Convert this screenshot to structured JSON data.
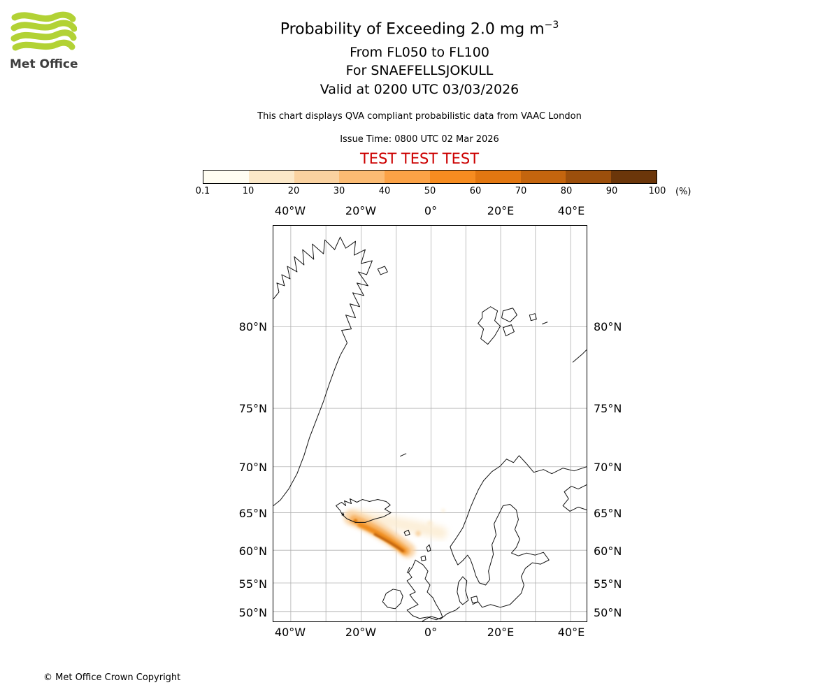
{
  "logo": {
    "text": "Met Office"
  },
  "header": {
    "title_main": "Probability of Exceeding 2.0 mg m",
    "title_exp": "−3",
    "subtitle_fl": "From FL050 to FL100",
    "subtitle_volcano": "For SNAEFELLSJOKULL",
    "subtitle_valid": "Valid at 0200 UTC 03/03/2026",
    "note": "This chart displays QVA compliant probabilistic data from VAAC London",
    "issue_time": "Issue Time: 0800 UTC 02 Mar 2026",
    "test_banner": "TEST TEST TEST"
  },
  "colorbar": {
    "ticks": [
      "0.1",
      "10",
      "20",
      "30",
      "40",
      "50",
      "60",
      "70",
      "80",
      "90",
      "100"
    ],
    "unit": "(%)",
    "colors": [
      "#fffdf2",
      "#fbe8c8",
      "#fad2a0",
      "#fbbb73",
      "#fba246",
      "#f68c20",
      "#e27711",
      "#c4650e",
      "#9c4f0c",
      "#6b360a"
    ]
  },
  "map": {
    "lon_labels": [
      "40°W",
      "20°W",
      "0°",
      "20°E",
      "40°E"
    ],
    "lat_labels": [
      "80°N",
      "75°N",
      "70°N",
      "65°N",
      "60°N",
      "55°N",
      "50°N"
    ],
    "plume_source": "SNAEFELLSJOKULL",
    "plume_color_peak": "#c4660c"
  },
  "footer": {
    "copyright": "© Met Office Crown Copyright"
  }
}
